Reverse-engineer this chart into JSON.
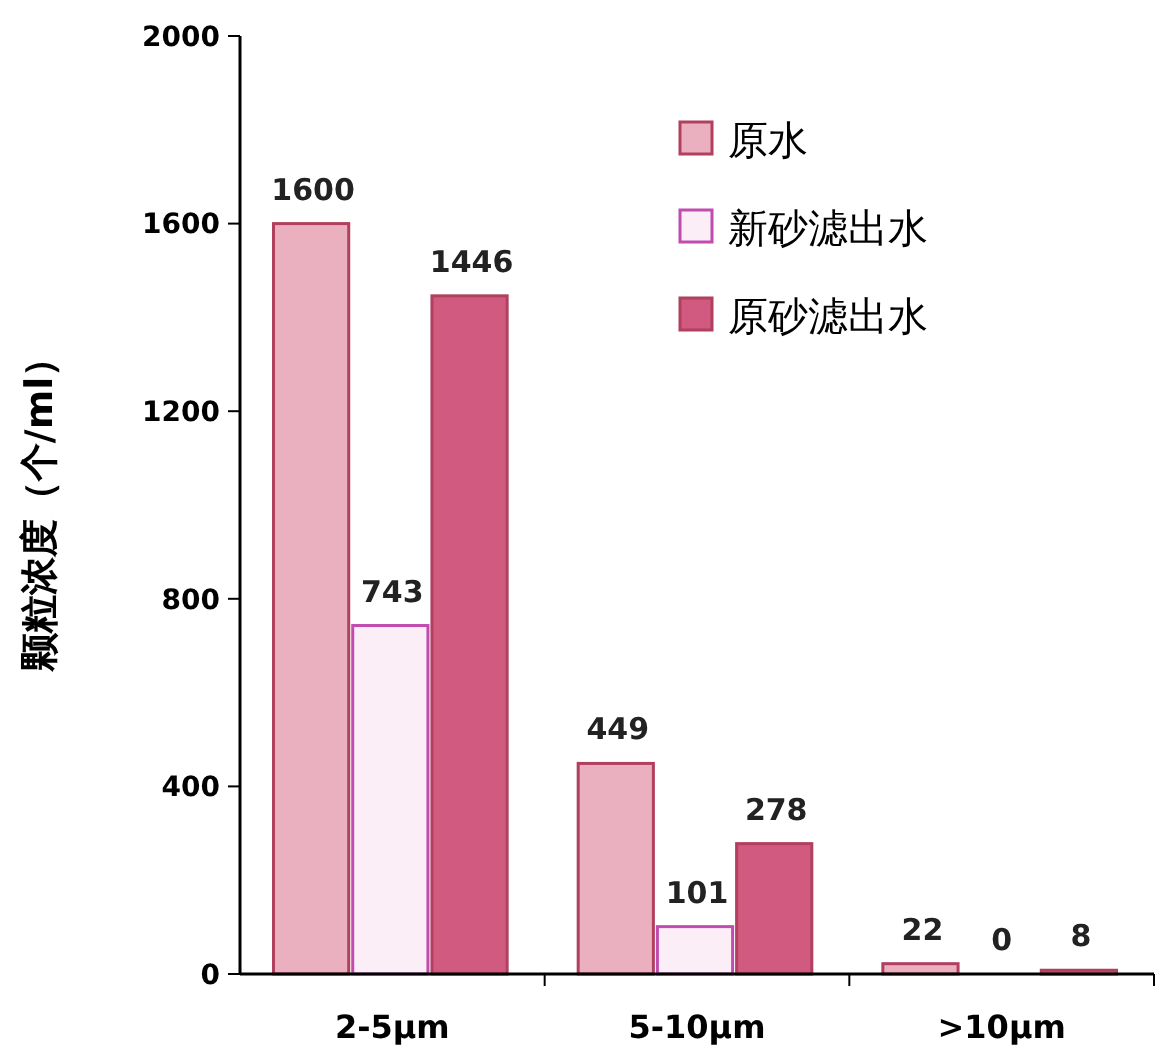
{
  "chart_data": {
    "type": "bar",
    "ylabel": "颗粒浓度（个/ml）",
    "categories": [
      "2-5μm",
      "5-10μm",
      ">10μm"
    ],
    "series": [
      {
        "name": "原水",
        "color": "#eab0c0",
        "values": [
          1600,
          449,
          22
        ]
      },
      {
        "name": "新砂滤出水",
        "color": "#fbeef6",
        "values": [
          743,
          101,
          0
        ]
      },
      {
        "name": "原砂滤出水",
        "color": "#d05a80",
        "values": [
          1446,
          278,
          8
        ]
      }
    ],
    "ylim": [
      0,
      2000
    ],
    "yticks": [
      0,
      400,
      800,
      1200,
      1600,
      2000
    ],
    "grid": false,
    "legend": "top right",
    "data_labels": true
  }
}
